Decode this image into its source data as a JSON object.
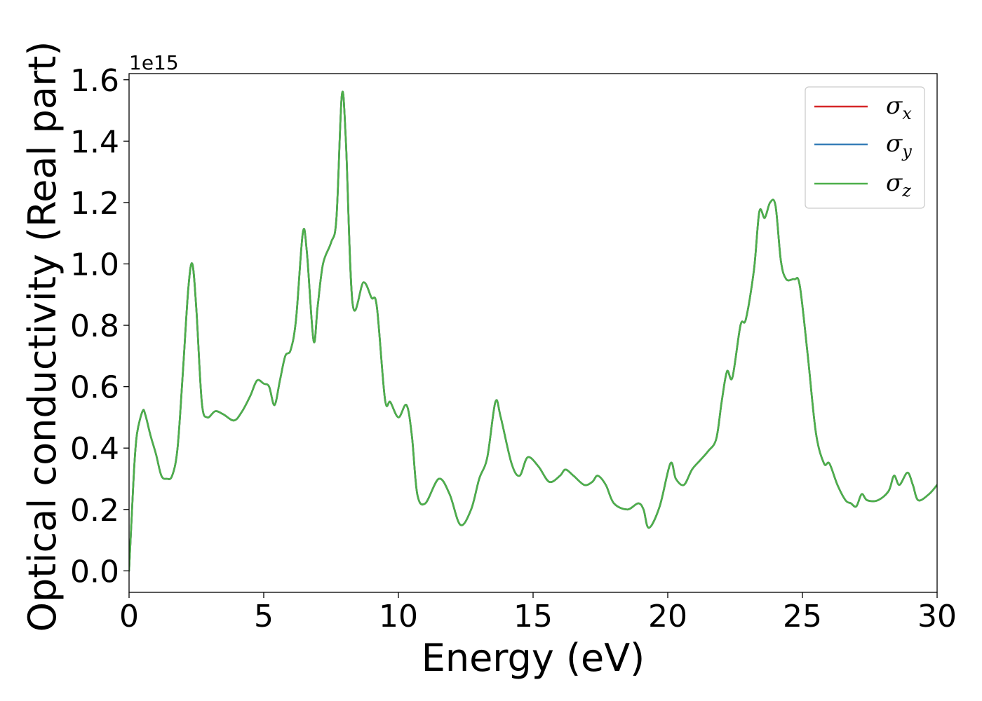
{
  "chart_data": {
    "type": "line",
    "xlabel": "Energy (eV)",
    "ylabel": "Optical conductivity (Real part)",
    "offset_text": "1e15",
    "xlim": [
      0,
      30
    ],
    "ylim": [
      -0.07,
      1.62
    ],
    "xticks": [
      0,
      5,
      10,
      15,
      20,
      25,
      30
    ],
    "xtick_labels": [
      "0",
      "5",
      "10",
      "15",
      "20",
      "25",
      "30"
    ],
    "yticks": [
      0.0,
      0.2,
      0.4,
      0.6,
      0.8,
      1.0,
      1.2,
      1.4,
      1.6
    ],
    "ytick_labels": [
      "0.0",
      "0.2",
      "0.4",
      "0.6",
      "0.8",
      "1.0",
      "1.2",
      "1.4",
      "1.6"
    ],
    "grid": false,
    "legend_position": "top-right",
    "colors": {
      "sigma_x": "#d62728",
      "sigma_y": "#377eb8",
      "sigma_z": "#4daf4a"
    },
    "series": [
      {
        "name": "σx",
        "symbol": "σ",
        "subscript": "x",
        "color": "#d62728",
        "ref": "shared"
      },
      {
        "name": "σy",
        "symbol": "σ",
        "subscript": "y",
        "color": "#377eb8",
        "ref": "shared"
      },
      {
        "name": "σz",
        "symbol": "σ",
        "subscript": "z",
        "color": "#4daf4a",
        "ref": "shared"
      }
    ],
    "shared_values": {
      "x": [
        0,
        0.1,
        0.2,
        0.3,
        0.5,
        0.6,
        0.8,
        1.0,
        1.2,
        1.4,
        1.6,
        1.8,
        2.0,
        2.2,
        2.35,
        2.5,
        2.7,
        2.9,
        3.2,
        3.5,
        3.9,
        4.2,
        4.5,
        4.75,
        5.0,
        5.2,
        5.4,
        5.6,
        5.8,
        6.0,
        6.2,
        6.45,
        6.6,
        6.85,
        7.0,
        7.2,
        7.5,
        7.7,
        7.9,
        8.05,
        8.3,
        8.7,
        9.0,
        9.2,
        9.5,
        9.7,
        10.0,
        10.3,
        10.5,
        10.7,
        11.0,
        11.5,
        11.9,
        12.3,
        12.7,
        13.0,
        13.3,
        13.6,
        13.8,
        14.2,
        14.5,
        14.8,
        15.2,
        15.6,
        16.0,
        16.2,
        16.5,
        16.9,
        17.2,
        17.4,
        17.7,
        18.0,
        18.5,
        18.9,
        19.1,
        19.3,
        19.7,
        20.1,
        20.3,
        20.6,
        20.9,
        21.2,
        21.5,
        21.8,
        22.0,
        22.2,
        22.4,
        22.7,
        22.9,
        23.2,
        23.4,
        23.6,
        23.8,
        24.0,
        24.2,
        24.4,
        24.7,
        24.9,
        25.2,
        25.5,
        25.8,
        26.0,
        26.3,
        26.6,
        26.8,
        27.0,
        27.2,
        27.4,
        27.8,
        28.2,
        28.4,
        28.6,
        28.9,
        29.1,
        29.3,
        29.7,
        30.0
      ],
      "y": [
        0.0,
        0.18,
        0.35,
        0.45,
        0.52,
        0.51,
        0.44,
        0.38,
        0.31,
        0.3,
        0.31,
        0.4,
        0.65,
        0.92,
        1.0,
        0.85,
        0.55,
        0.5,
        0.52,
        0.51,
        0.49,
        0.52,
        0.57,
        0.62,
        0.61,
        0.6,
        0.54,
        0.62,
        0.7,
        0.72,
        0.82,
        1.1,
        1.04,
        0.75,
        0.86,
        1.0,
        1.07,
        1.15,
        1.55,
        1.4,
        0.87,
        0.94,
        0.89,
        0.86,
        0.56,
        0.55,
        0.5,
        0.54,
        0.44,
        0.25,
        0.22,
        0.3,
        0.25,
        0.15,
        0.2,
        0.3,
        0.37,
        0.55,
        0.5,
        0.35,
        0.31,
        0.37,
        0.34,
        0.29,
        0.31,
        0.33,
        0.31,
        0.28,
        0.29,
        0.31,
        0.28,
        0.22,
        0.2,
        0.22,
        0.2,
        0.14,
        0.21,
        0.35,
        0.3,
        0.28,
        0.33,
        0.36,
        0.39,
        0.43,
        0.55,
        0.65,
        0.63,
        0.8,
        0.82,
        0.98,
        1.17,
        1.15,
        1.2,
        1.19,
        1.01,
        0.95,
        0.95,
        0.93,
        0.7,
        0.45,
        0.35,
        0.35,
        0.28,
        0.23,
        0.22,
        0.21,
        0.25,
        0.23,
        0.23,
        0.26,
        0.31,
        0.28,
        0.32,
        0.28,
        0.23,
        0.25,
        0.28
      ]
    }
  }
}
